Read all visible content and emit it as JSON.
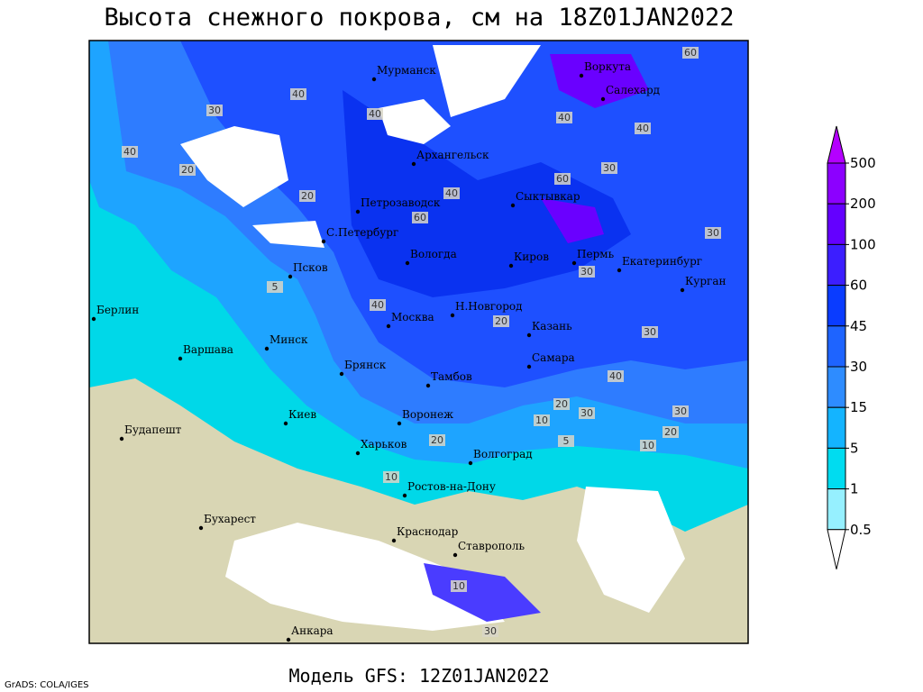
{
  "title": "Высота снежного покрова, см на 18Z01JAN2022",
  "cities": [
    {
      "name": "Мурманск"
    },
    {
      "name": "Воркута"
    },
    {
      "name": "Салехард"
    },
    {
      "name": "Архангельск"
    },
    {
      "name": "Сыктывкар"
    },
    {
      "name": "Петрозаводск"
    },
    {
      "name": "С.Петербург"
    },
    {
      "name": "Вологда"
    },
    {
      "name": "Киров"
    },
    {
      "name": "Пермь"
    },
    {
      "name": "Екатеринбург"
    },
    {
      "name": "Курган"
    },
    {
      "name": "Псков"
    },
    {
      "name": "Берлин"
    },
    {
      "name": "Москва"
    },
    {
      "name": "Н.Новгород"
    },
    {
      "name": "Казань"
    },
    {
      "name": "Минск"
    },
    {
      "name": "Варшава"
    },
    {
      "name": "Брянск"
    },
    {
      "name": "Самара"
    },
    {
      "name": "Тамбов"
    },
    {
      "name": "Киев"
    },
    {
      "name": "Воронеж"
    },
    {
      "name": "Будапешт"
    },
    {
      "name": "Харьков"
    },
    {
      "name": "Волгоград"
    },
    {
      "name": "Ростов-на-Дону"
    },
    {
      "name": "Бухарест"
    },
    {
      "name": "Краснодар"
    },
    {
      "name": "Ставрополь"
    },
    {
      "name": "Анкара"
    }
  ],
  "contour_labels": [
    "40",
    "60",
    "30",
    "40",
    "40",
    "20",
    "20",
    "40",
    "60",
    "40",
    "30",
    "40",
    "60",
    "30",
    "5",
    "40",
    "30",
    "20",
    "30",
    "40",
    "20",
    "30",
    "10",
    "30",
    "20",
    "10",
    "5",
    "20",
    "10",
    "10",
    "30"
  ],
  "colorbar": {
    "levels": [
      500,
      200,
      100,
      60,
      45,
      30,
      15,
      5,
      1,
      0.5
    ]
  },
  "footer": {
    "model": "Модель GFS: 12Z01JAN2022",
    "credit": "GrADS: COLA/IGES"
  }
}
